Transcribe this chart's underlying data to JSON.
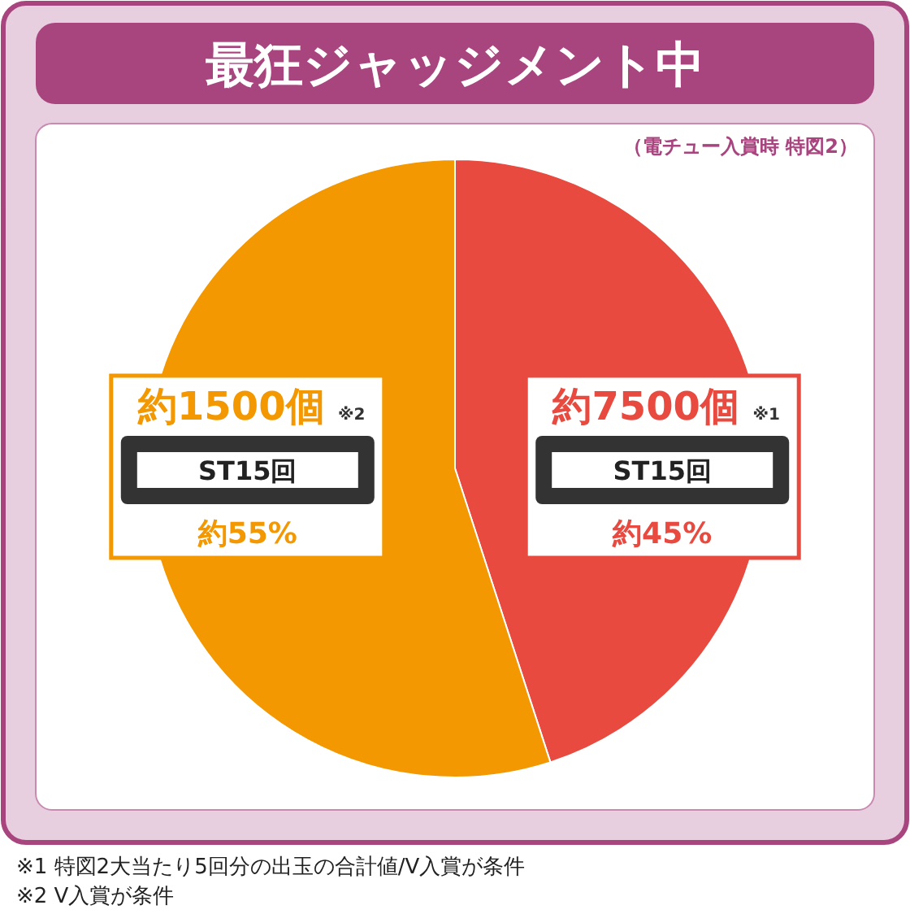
{
  "chart_data": {
    "type": "pie",
    "title": "最狂ジャッジメント中",
    "subtitle": "（電チュー入賞時 特図2）",
    "categories": [
      "約7500個",
      "約1500個"
    ],
    "values": [
      45,
      55
    ],
    "colors": [
      "#e84a3f",
      "#f39800"
    ],
    "value_labels": [
      "約45%",
      "約55%"
    ],
    "annotations": [
      "※1",
      "ST15回",
      "※2",
      "ST15回",
      "※1 特図2大当たり5回分の出玉の合計値/V入賞が条件",
      "※2 V入賞が条件"
    ]
  }
}
